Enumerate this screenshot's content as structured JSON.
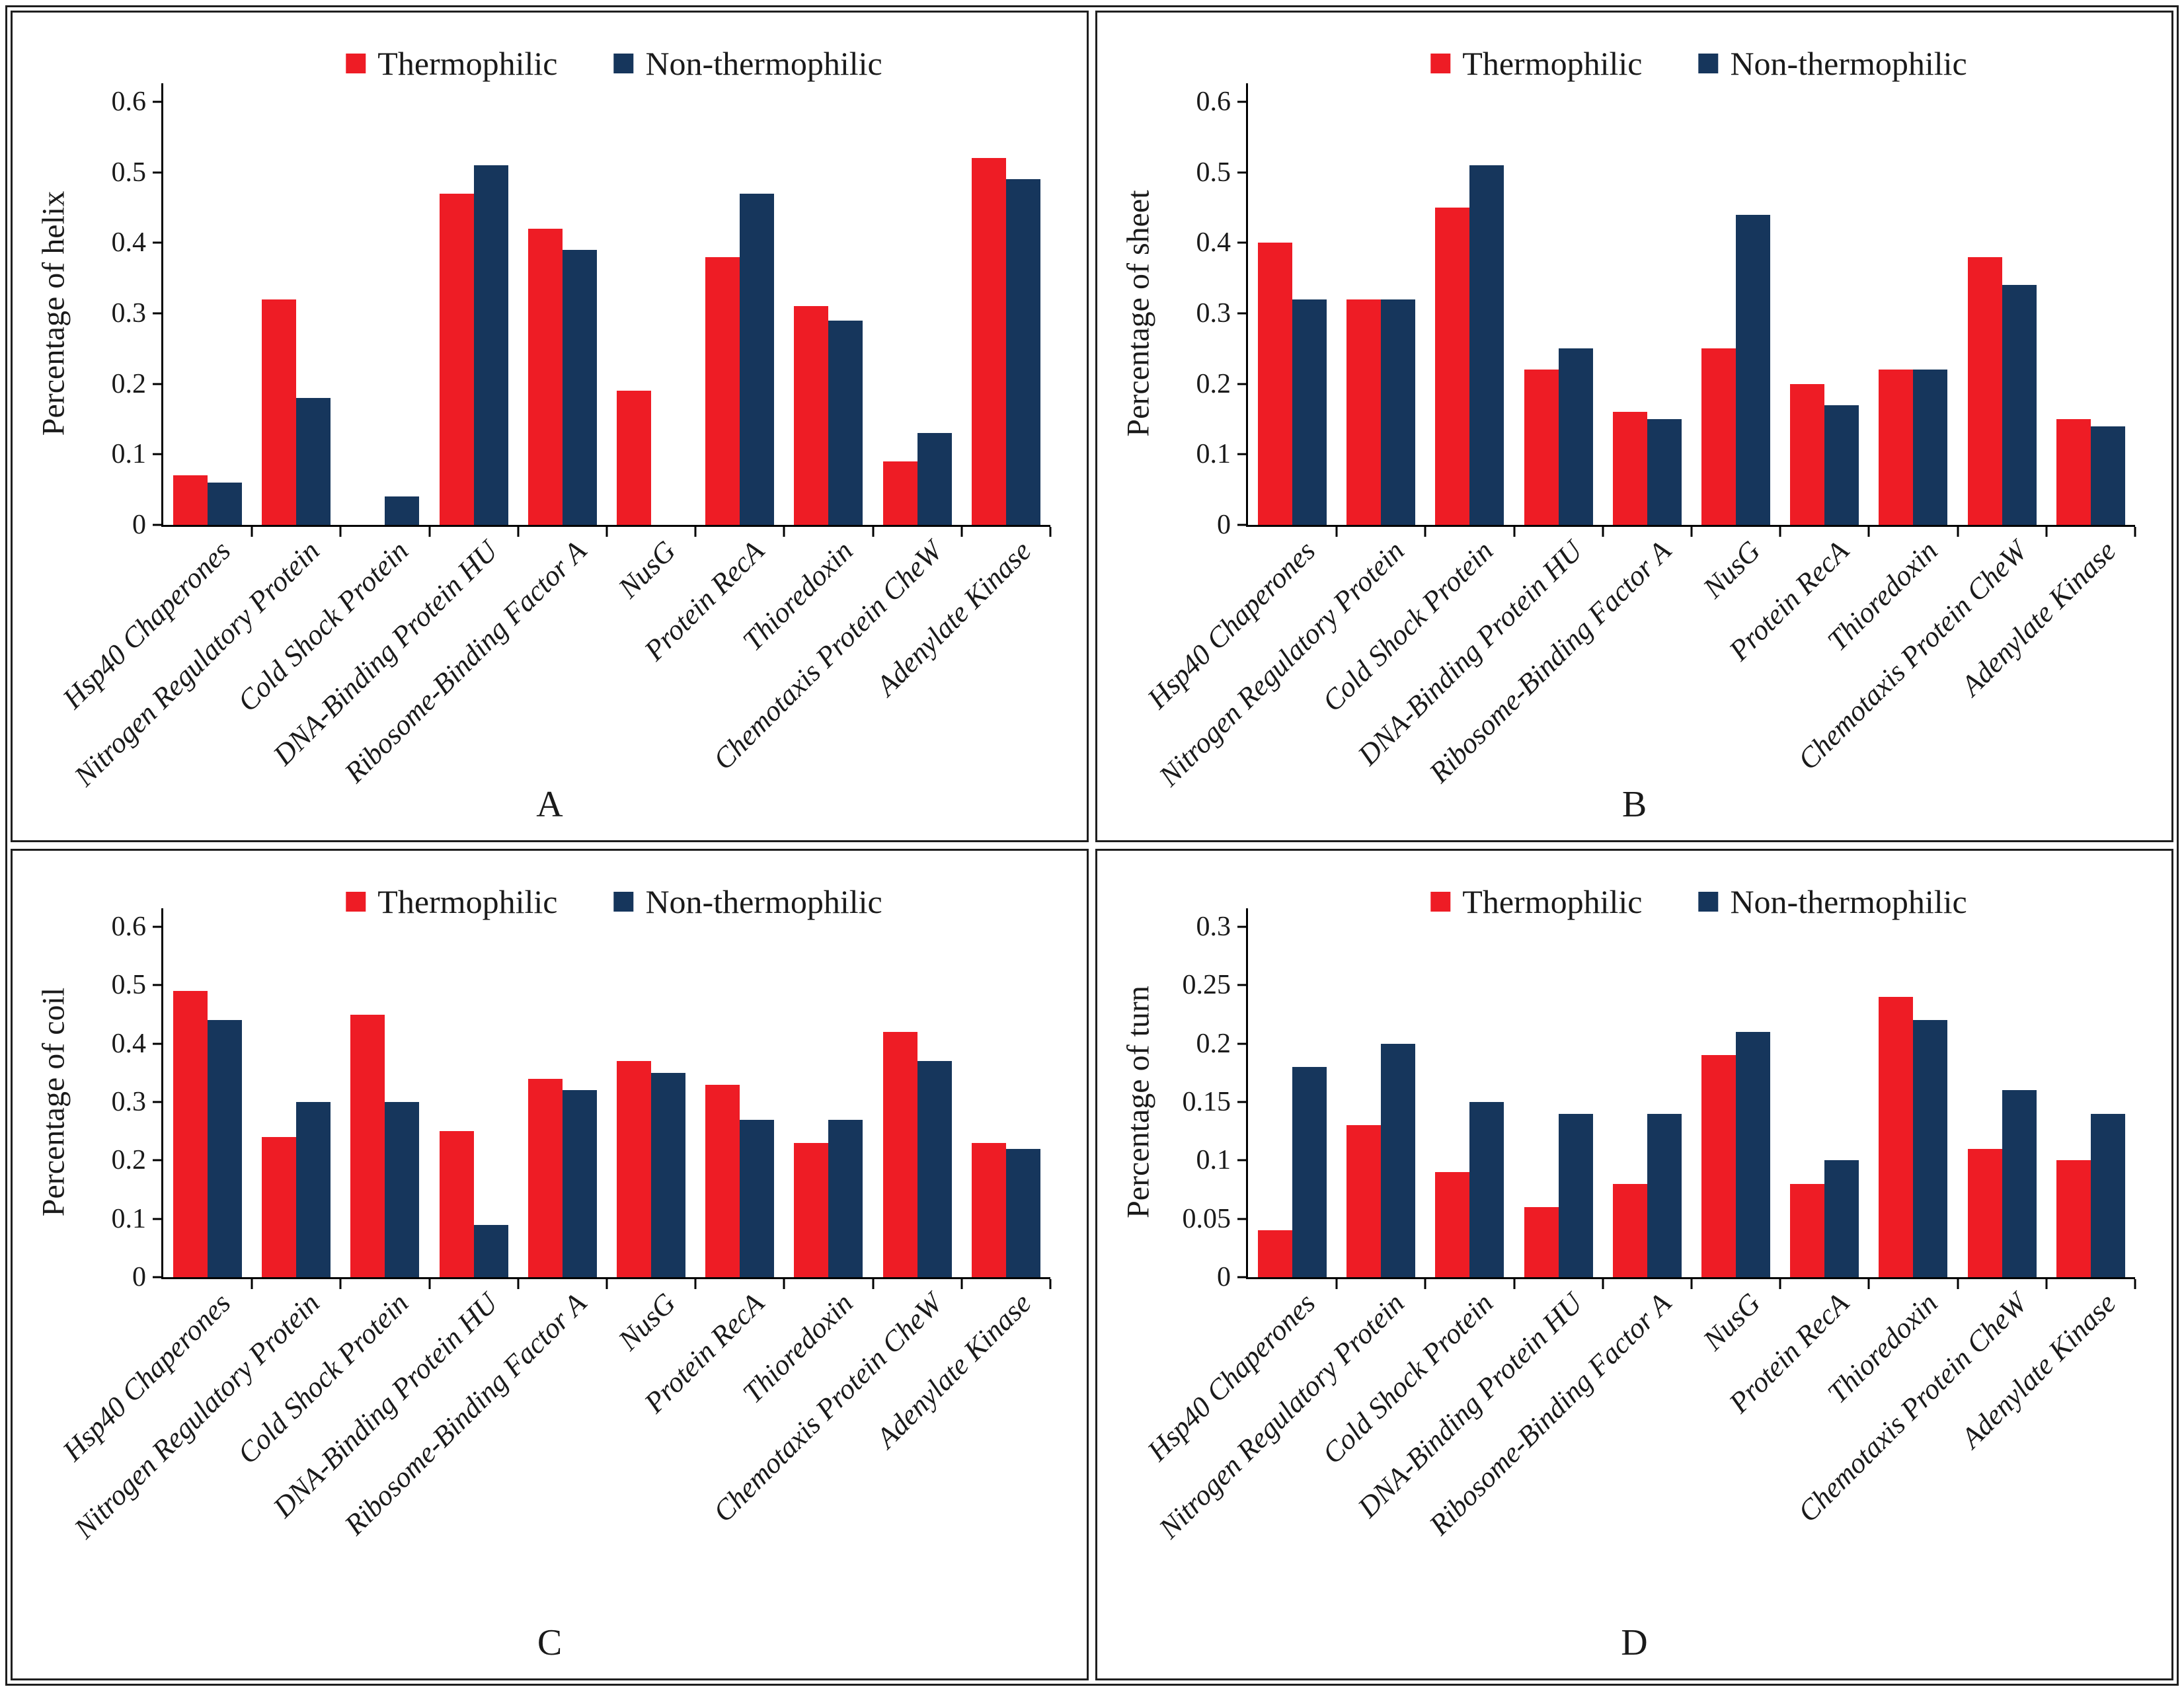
{
  "figure": {
    "legend": {
      "thermophilic": "Thermophilic",
      "non_thermophilic": "Non-thermophilic"
    },
    "colors": {
      "thermophilic": "#ee1c25",
      "non_thermophilic": "#16365c",
      "axis": "#000000",
      "text": "#1a1a1a"
    }
  },
  "chart_data": [
    {
      "type": "bar",
      "panel_label": "A",
      "ylabel": "Percentage of helix",
      "ylim": [
        0,
        0.6
      ],
      "yticks": [
        0,
        0.1,
        0.2,
        0.3,
        0.4,
        0.5,
        0.6
      ],
      "ytick_labels": [
        "0",
        "0.1",
        "0.2",
        "0.3",
        "0.4",
        "0.5",
        "0.6"
      ],
      "legend_position": "top-center",
      "grid": false,
      "categories": [
        "Hsp40 Chaperones",
        "Nitrogen Regulatory Protein",
        "Cold Shock Protein",
        "DNA-Binding Protein HU",
        "Ribosome-Binding Factor A",
        "NusG",
        "Protein RecA",
        "Thioredoxin",
        "Chemotaxis Protein CheW",
        "Adenylate Kinase"
      ],
      "series": [
        {
          "name": "Thermophilic",
          "values": [
            0.07,
            0.32,
            0.0,
            0.47,
            0.42,
            0.19,
            0.38,
            0.31,
            0.09,
            0.52
          ]
        },
        {
          "name": "Non-thermophilic",
          "values": [
            0.06,
            0.18,
            0.04,
            0.51,
            0.39,
            0.0,
            0.47,
            0.29,
            0.13,
            0.49
          ]
        }
      ]
    },
    {
      "type": "bar",
      "panel_label": "B",
      "ylabel": "Percentage of sheet",
      "ylim": [
        0,
        0.6
      ],
      "yticks": [
        0,
        0.1,
        0.2,
        0.3,
        0.4,
        0.5,
        0.6
      ],
      "ytick_labels": [
        "0",
        "0.1",
        "0.2",
        "0.3",
        "0.4",
        "0.5",
        "0.6"
      ],
      "legend_position": "top-center",
      "grid": false,
      "categories": [
        "Hsp40 Chaperones",
        "Nitrogen Regulatory Protein",
        "Cold Shock Protein",
        "DNA-Binding Protein HU",
        "Ribosome-Binding Factor A",
        "NusG",
        "Protein RecA",
        "Thioredoxin",
        "Chemotaxis Protein CheW",
        "Adenylate Kinase"
      ],
      "series": [
        {
          "name": "Thermophilic",
          "values": [
            0.4,
            0.32,
            0.45,
            0.22,
            0.16,
            0.25,
            0.2,
            0.22,
            0.38,
            0.15
          ]
        },
        {
          "name": "Non-thermophilic",
          "values": [
            0.32,
            0.32,
            0.51,
            0.25,
            0.15,
            0.44,
            0.17,
            0.22,
            0.34,
            0.14
          ]
        }
      ]
    },
    {
      "type": "bar",
      "panel_label": "C",
      "ylabel": "Percentage of coil",
      "ylim": [
        0,
        0.6
      ],
      "yticks": [
        0,
        0.1,
        0.2,
        0.3,
        0.4,
        0.5,
        0.6
      ],
      "ytick_labels": [
        "0",
        "0.1",
        "0.2",
        "0.3",
        "0.4",
        "0.5",
        "0.6"
      ],
      "legend_position": "top-center",
      "grid": false,
      "categories": [
        "Hsp40 Chaperones",
        "Nitrogen Regulatory Protein",
        "Cold Shock Protein",
        "DNA-Binding Protein HU",
        "Ribosome-Binding Factor A",
        "NusG",
        "Protein RecA",
        "Thioredoxin",
        "Chemotaxis Protein CheW",
        "Adenylate Kinase"
      ],
      "series": [
        {
          "name": "Thermophilic",
          "values": [
            0.49,
            0.24,
            0.45,
            0.25,
            0.34,
            0.37,
            0.33,
            0.23,
            0.42,
            0.23
          ]
        },
        {
          "name": "Non-thermophilic",
          "values": [
            0.44,
            0.3,
            0.3,
            0.09,
            0.32,
            0.35,
            0.27,
            0.27,
            0.37,
            0.22
          ]
        }
      ]
    },
    {
      "type": "bar",
      "panel_label": "D",
      "ylabel": "Percentage of turn",
      "ylim": [
        0,
        0.3
      ],
      "yticks": [
        0,
        0.05,
        0.1,
        0.15,
        0.2,
        0.25,
        0.3
      ],
      "ytick_labels": [
        "0",
        "0.05",
        "0.1",
        "0.15",
        "0.2",
        "0.25",
        "0.3"
      ],
      "legend_position": "top-center",
      "grid": false,
      "categories": [
        "Hsp40 Chaperones",
        "Nitrogen Regulatory Protein",
        "Cold Shock Protein",
        "DNA-Binding Protein HU",
        "Ribosome-Binding Factor A",
        "NusG",
        "Protein RecA",
        "Thioredoxin",
        "Chemotaxis Protein CheW",
        "Adenylate Kinase"
      ],
      "series": [
        {
          "name": "Thermophilic",
          "values": [
            0.04,
            0.13,
            0.09,
            0.06,
            0.08,
            0.19,
            0.08,
            0.24,
            0.11,
            0.1
          ]
        },
        {
          "name": "Non-thermophilic",
          "values": [
            0.18,
            0.2,
            0.15,
            0.14,
            0.14,
            0.21,
            0.1,
            0.22,
            0.16,
            0.14
          ]
        }
      ]
    }
  ]
}
